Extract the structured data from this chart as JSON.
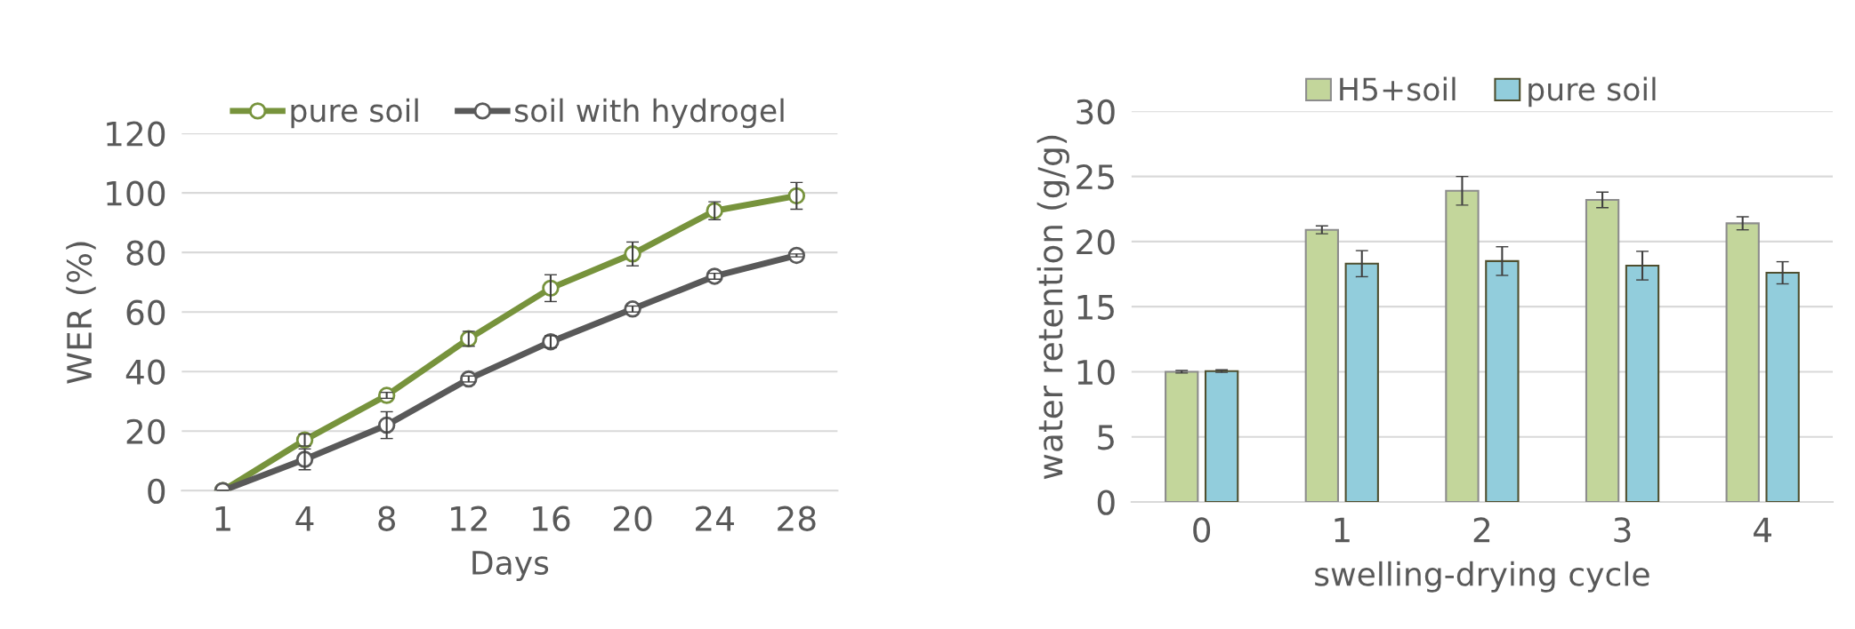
{
  "chart_data": [
    {
      "type": "line",
      "xlabel": "Days",
      "ylabel": "WER (%)",
      "categories": [
        "1",
        "4",
        "8",
        "12",
        "16",
        "20",
        "24",
        "28"
      ],
      "ylim": [
        0,
        120
      ],
      "yticks": [
        0,
        20,
        40,
        60,
        80,
        100,
        120
      ],
      "grid": "y",
      "legend": "top",
      "marker": "circle",
      "line_style": "solid",
      "series": [
        {
          "name": "pure soil",
          "color": "#77933c",
          "values": [
            0,
            17,
            32,
            51,
            68,
            79.5,
            94,
            99
          ],
          "errors": [
            0,
            2,
            1,
            2.5,
            4.5,
            4,
            3,
            4.5
          ]
        },
        {
          "name": "soil with hydrogel",
          "color": "#595959",
          "values": [
            0,
            10.5,
            22,
            37.5,
            50,
            61,
            72,
            79
          ],
          "errors": [
            0,
            3.5,
            4.5,
            1,
            2,
            1,
            1,
            0.5
          ]
        }
      ]
    },
    {
      "type": "bar",
      "xlabel": "swelling-drying cycle",
      "ylabel": "water retention (g/g)",
      "categories": [
        "0",
        "1",
        "2",
        "3",
        "4"
      ],
      "ylim": [
        0,
        30
      ],
      "yticks": [
        0,
        5,
        10,
        15,
        20,
        25,
        30
      ],
      "grid": "y",
      "legend": "top",
      "series": [
        {
          "name": "H5+soil",
          "color": "#c3d69b",
          "values": [
            10,
            20.9,
            23.9,
            23.2,
            21.4
          ],
          "errors": [
            0.1,
            0.3,
            1.1,
            0.6,
            0.5
          ]
        },
        {
          "name": "pure soil",
          "color": "#92cddc",
          "values": [
            10.05,
            18.3,
            18.5,
            18.15,
            17.6
          ],
          "errors": [
            0.1,
            1,
            1.1,
            1.1,
            0.85
          ]
        }
      ]
    }
  ]
}
